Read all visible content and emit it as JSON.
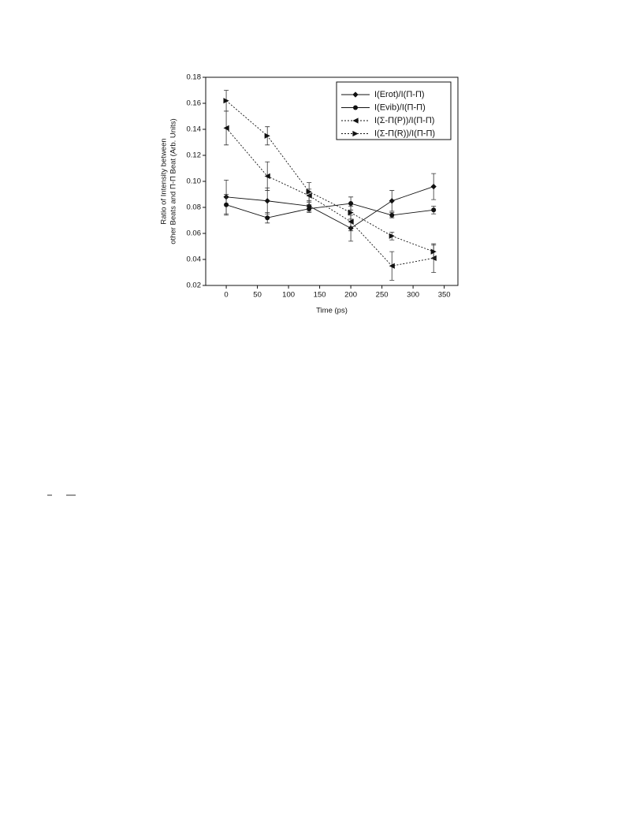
{
  "chart_data": {
    "type": "line",
    "x_label": "Time (ps)",
    "y_label": [
      "Ratio of Intensity between",
      "other Beats and Π-Π Beat (Arb. Units)"
    ],
    "x": [
      0,
      66,
      133,
      200,
      266,
      333
    ],
    "series": [
      {
        "name": "I(Erot)/I(Π-Π)",
        "color": "#111111",
        "marker": "diamond",
        "linestyle": "solid",
        "values": [
          0.088,
          0.085,
          0.081,
          0.064,
          0.085,
          0.096
        ],
        "errors": [
          0.013,
          0.01,
          0.004,
          0.01,
          0.008,
          0.01
        ]
      },
      {
        "name": "I(Evib)/I(Π-Π)",
        "color": "#111111",
        "marker": "circle",
        "linestyle": "solid",
        "values": [
          0.082,
          0.072,
          0.079,
          0.083,
          0.074,
          0.078
        ],
        "errors": [
          0.008,
          0.004,
          0.003,
          0.005,
          0.002,
          0.003
        ]
      },
      {
        "name": "I(Σ-Π(P))/I(Π-Π)",
        "color": "#111111",
        "marker": "triangle-left",
        "linestyle": "dotted",
        "values": [
          0.141,
          0.104,
          0.089,
          0.069,
          0.035,
          0.041
        ],
        "errors": [
          0.013,
          0.011,
          0.005,
          0.007,
          0.011,
          0.011
        ]
      },
      {
        "name": "I(Σ-Π(R))/I(Π-Π)",
        "color": "#111111",
        "marker": "triangle-right",
        "linestyle": "dotted",
        "values": [
          0.162,
          0.135,
          0.092,
          0.076,
          0.058,
          0.046
        ],
        "errors": [
          0.008,
          0.007,
          0.007,
          0.005,
          0.003,
          0.005
        ]
      }
    ],
    "xlim": [
      -33,
      372
    ],
    "xticks": [
      0,
      50,
      100,
      150,
      200,
      250,
      300,
      350
    ],
    "ylim": [
      0.02,
      0.18
    ],
    "yticks": [
      0.02,
      0.04,
      0.06,
      0.08,
      {
        "value": 0.1,
        "label": "0.10"
      },
      0.12,
      0.14,
      0.16,
      0.18
    ],
    "legend": "upper right"
  }
}
